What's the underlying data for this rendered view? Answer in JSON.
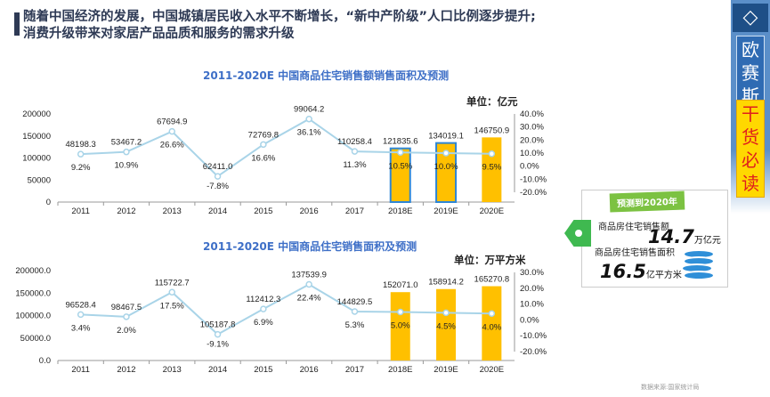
{
  "headline": {
    "line1": "随着中国经济的发展，中国城镇居民收入水平不断增长，“新中产阶级”人口比例逐步提升;",
    "line2": "消费升级带来对家居产品品质和服务的需求升级"
  },
  "sidebar": {
    "brand": "欧赛斯",
    "slogan": "干货必读",
    "icon": "diamond-icon"
  },
  "callout": {
    "badge": "预测到2020年",
    "label1": "商品房住宅销售额",
    "value1": "14.7",
    "unit1": "万亿元",
    "label2": "商品房住宅销售面积",
    "value2": "16.5",
    "unit2": "亿平方米",
    "icon": "coins-icon"
  },
  "source": "数据来源:国家统计局",
  "colors": {
    "bar": "#ffc000",
    "line": "#a9d4e8",
    "title": "#3e6fc7",
    "ribbon": "#2f6bb3"
  },
  "chart_data": [
    {
      "type": "bar",
      "title": "2011-2020E 中国商品住宅销售额销售面积及预测",
      "unit": "单位：亿元",
      "categories": [
        "2011",
        "2012",
        "2013",
        "2014",
        "2015",
        "2016",
        "2017",
        "2018E",
        "2019E",
        "2020E"
      ],
      "values": [
        48198.3,
        53467.2,
        67694.9,
        62411.0,
        72769.8,
        99064.2,
        110258.4,
        121835.6,
        134019.1,
        146750.9
      ],
      "value_labels": [
        "48198.3",
        "53467.2",
        "67694.9",
        "62411.0",
        "72769.8",
        "99064.2",
        "110258.4",
        "121835.6",
        "134019.1",
        "146750.9"
      ],
      "bars_visible": [
        false,
        false,
        false,
        false,
        false,
        false,
        false,
        true,
        true,
        true
      ],
      "growth": [
        9.2,
        10.9,
        26.6,
        -7.8,
        16.6,
        36.1,
        11.3,
        10.5,
        10.0,
        9.5
      ],
      "growth_labels": [
        "9.2%",
        "10.9%",
        "26.6%",
        "-7.8%",
        "16.6%",
        "36.1%",
        "11.3%",
        "10.5%",
        "10.0%",
        "9.5%"
      ],
      "ylim": [
        0,
        200000
      ],
      "yticks": [
        "0",
        "50000",
        "100000",
        "150000",
        "200000"
      ],
      "y2lim": [
        -20,
        40
      ],
      "y2ticks": [
        "-20.0%",
        "-10.0%",
        "0.0%",
        "10.0%",
        "20.0%",
        "30.0%",
        "40.0%"
      ]
    },
    {
      "type": "bar",
      "title": "2011-2020E 中国商品住宅销售面积及预测",
      "unit": "单位：万平方米",
      "categories": [
        "2011",
        "2012",
        "2013",
        "2014",
        "2015",
        "2016",
        "2017",
        "2018E",
        "2019E",
        "2020E"
      ],
      "values": [
        96528.4,
        98467.5,
        115722.7,
        105187.8,
        112412.3,
        137539.9,
        144829.5,
        152071.0,
        158914.2,
        165270.8
      ],
      "value_labels": [
        "96528.4",
        "98467.5",
        "115722.7",
        "105187.8",
        "112412.3",
        "137539.9",
        "144829.5",
        "152071.0",
        "158914.2",
        "165270.8"
      ],
      "bars_visible": [
        false,
        false,
        false,
        false,
        false,
        false,
        false,
        true,
        true,
        true
      ],
      "growth": [
        3.4,
        2.0,
        17.5,
        -9.1,
        6.9,
        22.4,
        5.3,
        5.0,
        4.5,
        4.0
      ],
      "growth_labels": [
        "3.4%",
        "2.0%",
        "17.5%",
        "-9.1%",
        "6.9%",
        "22.4%",
        "5.3%",
        "5.0%",
        "4.5%",
        "4.0%"
      ],
      "ylim": [
        0,
        200000
      ],
      "yticks": [
        "0.0",
        "50000.0",
        "100000.0",
        "150000.0",
        "200000.0"
      ],
      "y2lim": [
        -20,
        30
      ],
      "y2ticks": [
        "-20.0%",
        "-10.0%",
        "0.0%",
        "10.0%",
        "20.0%",
        "30.0%"
      ]
    }
  ]
}
